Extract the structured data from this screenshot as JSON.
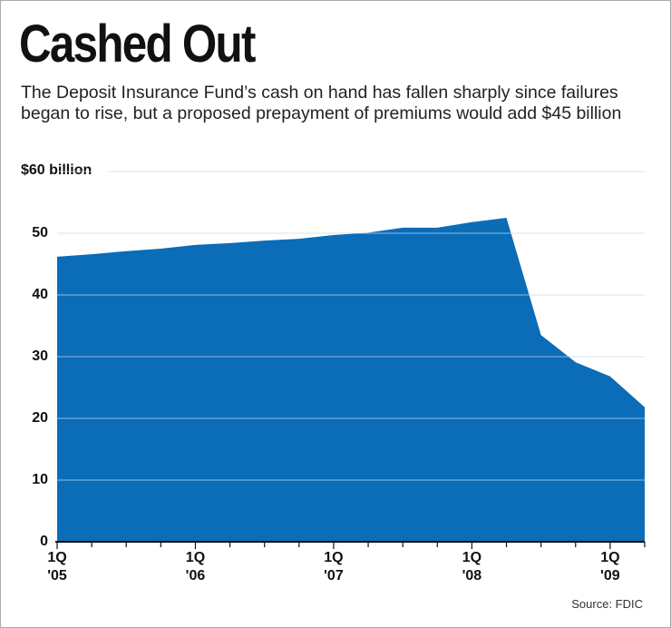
{
  "chart_data": {
    "type": "area",
    "title": "Cashed Out",
    "subtitle": "The Deposit Insurance Fund’s cash on hand has fallen sharply since failures began to rise, but a proposed prepayment of premiums would add $45 billion",
    "source": "Source: FDIC",
    "categories": [
      "1Q\n'05",
      null,
      null,
      null,
      "1Q\n'06",
      null,
      null,
      null,
      "1Q\n'07",
      null,
      null,
      null,
      "1Q\n'08",
      null,
      null,
      null,
      "1Q\n'09",
      null
    ],
    "values": [
      46.2,
      46.6,
      47.1,
      47.5,
      48.1,
      48.4,
      48.8,
      49.1,
      49.7,
      50.1,
      50.9,
      50.9,
      51.8,
      52.5,
      33.5,
      29.1,
      26.8,
      21.8
    ],
    "color": "#0b6cb8",
    "ylim": [
      0,
      60
    ],
    "yticks": [
      0,
      10,
      20,
      30,
      40,
      50,
      {
        "value": 60,
        "label": "$60 billion"
      }
    ],
    "grid": true
  }
}
